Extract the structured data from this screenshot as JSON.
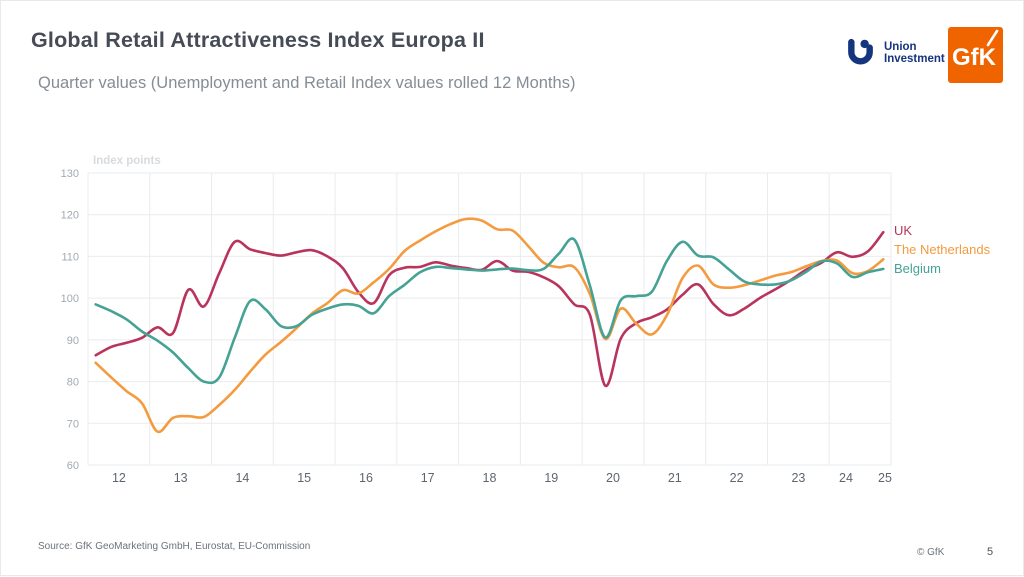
{
  "header": {
    "title": "Global Retail Attractiveness Index Europa II",
    "subtitle": "Quarter values (Unemployment and Retail Index values rolled 12 Months)",
    "logos": {
      "union_investment": {
        "line1": "Union",
        "line2": "Investment",
        "color": "#16357f"
      },
      "gfk": {
        "label": "GfK",
        "color": "#f06400"
      }
    }
  },
  "chart_data": {
    "type": "line",
    "title": "Quarter values (Unemployment and Retail Index values rolled 12 Months)",
    "unit_label": "Index points",
    "ylim": [
      60,
      130
    ],
    "xlim": [
      2011.9,
      2025.05
    ],
    "grid": true,
    "legend_position": "right",
    "y_ticks": [
      130,
      120,
      110,
      100,
      90,
      80,
      70,
      60
    ],
    "x_tick_labels": [
      "12",
      "13",
      "14",
      "15",
      "16",
      "17",
      "18",
      "19",
      "20",
      "21",
      "22",
      "23",
      "24",
      "25"
    ],
    "x": [
      2012.125,
      2012.375,
      2012.625,
      2012.875,
      2013.125,
      2013.375,
      2013.625,
      2013.875,
      2014.125,
      2014.375,
      2014.625,
      2014.875,
      2015.125,
      2015.375,
      2015.625,
      2015.875,
      2016.125,
      2016.375,
      2016.625,
      2016.875,
      2017.125,
      2017.375,
      2017.625,
      2017.875,
      2018.125,
      2018.375,
      2018.625,
      2018.875,
      2019.125,
      2019.375,
      2019.625,
      2019.875,
      2020.125,
      2020.375,
      2020.625,
      2020.875,
      2021.125,
      2021.375,
      2021.625,
      2021.875,
      2022.125,
      2022.375,
      2022.625,
      2022.875,
      2023.125,
      2023.375,
      2023.625,
      2023.875,
      2024.125,
      2024.375,
      2024.625,
      2024.875
    ],
    "series": [
      {
        "name": "UK",
        "color": "#b9345c",
        "values": [
          86.3,
          88.3,
          89.3,
          90.5,
          93.0,
          91.6,
          102.0,
          98.0,
          106.0,
          113.5,
          111.7,
          110.8,
          110.2,
          111.0,
          111.5,
          110.0,
          107.2,
          101.5,
          98.8,
          105.5,
          107.3,
          107.5,
          108.6,
          107.8,
          107.2,
          106.8,
          108.9,
          106.6,
          106.3,
          105.0,
          102.8,
          98.5,
          96.0,
          79.0,
          90.3,
          94.0,
          95.4,
          97.3,
          100.8,
          103.3,
          98.6,
          95.9,
          97.5,
          100.0,
          102.1,
          104.3,
          106.8,
          108.5,
          111.0,
          109.9,
          111.2,
          115.8
        ]
      },
      {
        "name": "The Netherlands",
        "color": "#f49b3f",
        "values": [
          84.5,
          81.0,
          77.7,
          74.8,
          68.0,
          71.3,
          71.7,
          71.5,
          74.4,
          78.0,
          82.4,
          86.5,
          89.5,
          92.8,
          96.3,
          98.8,
          101.9,
          101.1,
          103.8,
          107.0,
          111.3,
          113.8,
          116.0,
          117.8,
          119.0,
          118.6,
          116.5,
          116.2,
          112.5,
          108.5,
          107.4,
          107.4,
          101.0,
          90.2,
          97.5,
          93.9,
          91.3,
          96.0,
          104.8,
          107.8,
          103.3,
          102.5,
          103.1,
          104.2,
          105.4,
          106.2,
          107.6,
          108.9,
          109.0,
          106.0,
          106.5,
          109.3
        ]
      },
      {
        "name": "Belgium",
        "color": "#45a295",
        "values": [
          98.5,
          96.9,
          94.9,
          92.0,
          89.8,
          87.0,
          83.2,
          80.0,
          81.0,
          90.5,
          99.3,
          97.3,
          93.3,
          93.3,
          96.0,
          97.5,
          98.5,
          98.2,
          96.4,
          100.5,
          103.2,
          106.2,
          107.5,
          107.2,
          106.9,
          106.6,
          106.9,
          107.1,
          106.7,
          107.0,
          110.7,
          114.0,
          103.0,
          90.6,
          99.5,
          100.5,
          101.5,
          109.0,
          113.5,
          110.2,
          109.8,
          106.9,
          104.0,
          103.3,
          103.3,
          104.2,
          106.3,
          108.8,
          108.3,
          105.1,
          106.2,
          107.0
        ]
      }
    ]
  },
  "footer": {
    "source": "Source: GfK GeoMarketing GmbH, Eurostat, EU-Commission",
    "copyright": "© GfK",
    "page": "5"
  }
}
